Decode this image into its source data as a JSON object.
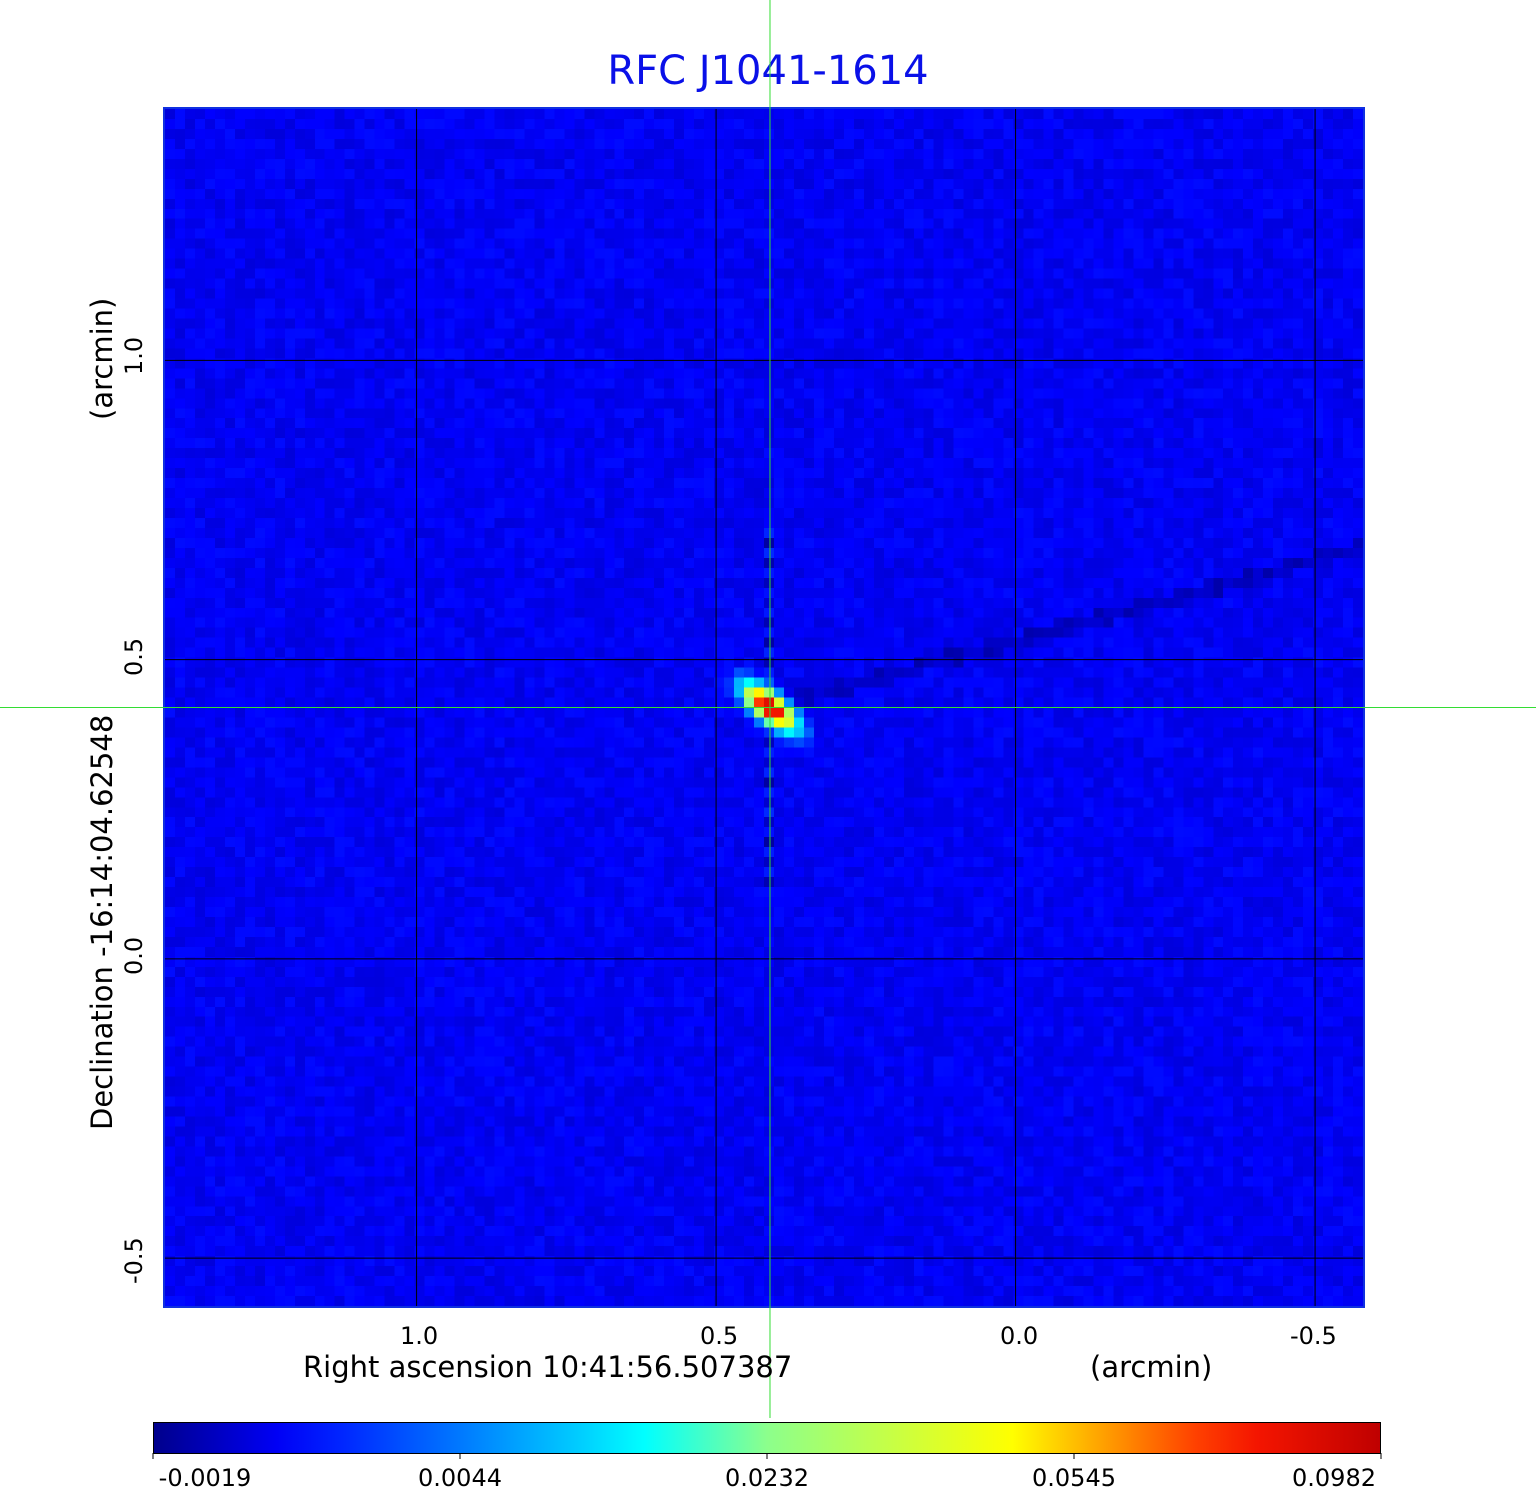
{
  "chart_data": {
    "type": "heatmap",
    "title": "RFC J1041-1614",
    "xlabel": "Right ascension  10:41:56.507387",
    "xunit": "(arcmin)",
    "ylabel": "Declination  -16:14:04.62548",
    "yunit": "(arcmin)",
    "xlim": [
      1.42,
      -0.58
    ],
    "ylim": [
      -0.58,
      1.42
    ],
    "x_ticks": [
      "1.0",
      "0.5",
      "0.0",
      "-0.5"
    ],
    "x_tick_values": [
      1.0,
      0.5,
      0.0,
      -0.5
    ],
    "y_ticks": [
      "1.0",
      "0.5",
      "0.0",
      "-0.5"
    ],
    "y_tick_values": [
      1.0,
      0.5,
      0.0,
      -0.5
    ],
    "grid": true,
    "crosshair": {
      "x": 0.41,
      "y": 0.42,
      "color": "#33dd33"
    },
    "source": {
      "x": 0.41,
      "y": 0.42,
      "peak": 0.0982,
      "position_angle_deg": -40
    },
    "colormap": "jet",
    "colorbar": {
      "orientation": "horizontal",
      "position": "bottom",
      "tick_labels": [
        "-0.0019",
        "0.0044",
        "0.0232",
        "0.0545",
        "0.0982"
      ],
      "tick_values": [
        -0.0019,
        0.0044,
        0.0232,
        0.0545,
        0.0982
      ],
      "range": [
        -0.0019,
        0.0982
      ]
    }
  }
}
